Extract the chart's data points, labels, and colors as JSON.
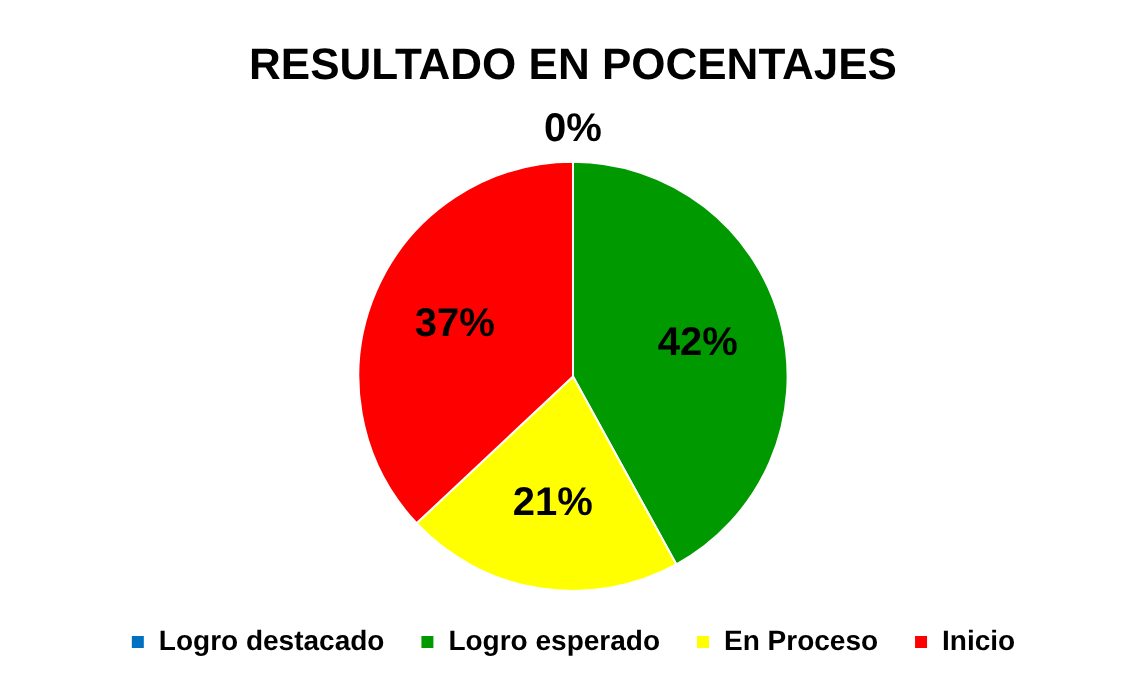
{
  "chart_data": {
    "type": "pie",
    "title": "RESULTADO EN POCENTAJES",
    "categories": [
      "Logro destacado",
      "Logro esperado",
      "En Proceso",
      "Inicio"
    ],
    "values": [
      0,
      42,
      21,
      37
    ],
    "colors": [
      "#0070c0",
      "#009900",
      "#ffff00",
      "#ff0000"
    ],
    "value_labels": [
      "0%",
      "42%",
      "21%",
      "37%"
    ],
    "legend": "bottom"
  }
}
